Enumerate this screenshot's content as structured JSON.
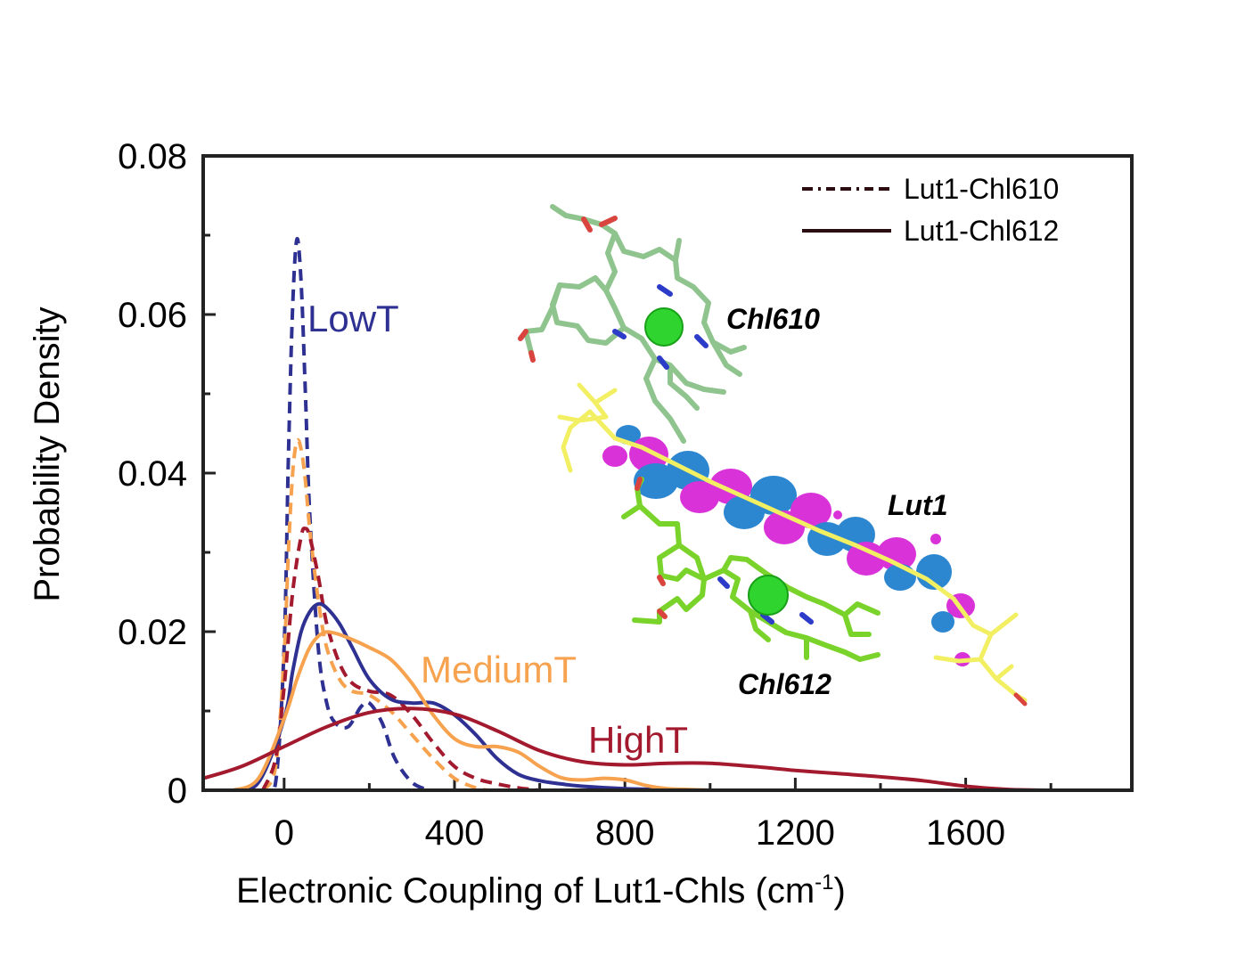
{
  "chart_data": {
    "type": "line",
    "xlabel_main": "Electronic Coupling of Lut1-Chls (cm",
    "xlabel_sup": "-1",
    "xlabel_close": ")",
    "ylabel": "Probability Density",
    "xlim": [
      -190,
      1990
    ],
    "ylim": [
      0,
      0.08
    ],
    "xticks": [
      0,
      400,
      800,
      1200,
      1600
    ],
    "xtick_labels": [
      "0",
      "400",
      "800",
      "1200",
      "1600"
    ],
    "yticks": [
      0,
      0.02,
      0.04,
      0.06,
      0.08
    ],
    "ytick_labels": [
      "0",
      "0.02",
      "0.04",
      "0.06",
      "0.08"
    ],
    "legend": {
      "position": "top-right",
      "entries": [
        {
          "label": "Lut1-Chl610",
          "style": "dashed"
        },
        {
          "label": "Lut1-Chl612",
          "style": "solid"
        }
      ]
    },
    "annotations": [
      {
        "text": "LowT",
        "color": "#2e3192"
      },
      {
        "text": "MediumT",
        "color": "#f7a24f"
      },
      {
        "text": "HighT",
        "color": "#a3192e"
      }
    ],
    "inset_labels": [
      "Chl610",
      "Lut1",
      "Chl612"
    ],
    "series": [
      {
        "pair": "Lut1-Chl610",
        "temperature": "LowT",
        "color": "#2e3192",
        "style": "dashed",
        "x": [
          -50,
          -20,
          0,
          10,
          20,
          30,
          40,
          50,
          60,
          80,
          100,
          120,
          150,
          180,
          200,
          230,
          260,
          300,
          340
        ],
        "y": [
          0,
          0.001,
          0.018,
          0.042,
          0.061,
          0.0695,
          0.064,
          0.05,
          0.035,
          0.018,
          0.011,
          0.0085,
          0.008,
          0.0105,
          0.011,
          0.0085,
          0.004,
          0.001,
          0
        ]
      },
      {
        "pair": "Lut1-Chl610",
        "temperature": "MediumT",
        "color": "#f7a24f",
        "style": "dashed",
        "x": [
          -50,
          -20,
          0,
          10,
          20,
          30,
          40,
          50,
          60,
          80,
          100,
          130,
          160,
          200,
          250,
          300,
          350,
          400,
          450,
          480
        ],
        "y": [
          0,
          0.003,
          0.017,
          0.03,
          0.04,
          0.044,
          0.043,
          0.039,
          0.033,
          0.024,
          0.018,
          0.014,
          0.0125,
          0.012,
          0.01,
          0.007,
          0.004,
          0.0015,
          0.0003,
          0
        ]
      },
      {
        "pair": "Lut1-Chl610",
        "temperature": "HighT",
        "color": "#a3192e",
        "style": "dashed",
        "x": [
          -50,
          -20,
          0,
          20,
          40,
          50,
          60,
          80,
          100,
          130,
          160,
          200,
          250,
          300,
          350,
          400,
          450,
          500,
          550,
          600
        ],
        "y": [
          0,
          0.004,
          0.013,
          0.025,
          0.032,
          0.033,
          0.032,
          0.027,
          0.021,
          0.016,
          0.0135,
          0.0125,
          0.012,
          0.0095,
          0.006,
          0.003,
          0.0015,
          0.0008,
          0.0003,
          0
        ]
      },
      {
        "pair": "Lut1-Chl612",
        "temperature": "LowT",
        "color": "#2e3192",
        "style": "solid",
        "x": [
          -120,
          -60,
          0,
          20,
          40,
          60,
          80,
          100,
          130,
          160,
          200,
          250,
          300,
          350,
          400,
          450,
          500,
          550,
          600,
          650,
          700,
          800,
          900,
          1000
        ],
        "y": [
          0,
          0.001,
          0.009,
          0.015,
          0.02,
          0.0225,
          0.0235,
          0.023,
          0.021,
          0.018,
          0.014,
          0.0115,
          0.011,
          0.011,
          0.0095,
          0.007,
          0.004,
          0.002,
          0.0012,
          0.0008,
          0.0005,
          0.0002,
          0.0001,
          0
        ]
      },
      {
        "pair": "Lut1-Chl612",
        "temperature": "MediumT",
        "color": "#f7a24f",
        "style": "solid",
        "x": [
          -120,
          -60,
          0,
          30,
          60,
          90,
          120,
          160,
          200,
          250,
          300,
          350,
          400,
          450,
          500,
          550,
          600,
          650,
          700,
          750,
          800,
          850,
          900,
          950,
          1000
        ],
        "y": [
          0,
          0.0015,
          0.009,
          0.014,
          0.018,
          0.0198,
          0.0198,
          0.019,
          0.018,
          0.0165,
          0.0135,
          0.0095,
          0.0065,
          0.0055,
          0.0055,
          0.0048,
          0.003,
          0.0016,
          0.0013,
          0.0015,
          0.0013,
          0.0006,
          0.0002,
          0.0001,
          0
        ]
      },
      {
        "pair": "Lut1-Chl612",
        "temperature": "HighT",
        "color": "#a3192e",
        "style": "solid",
        "x": [
          -190,
          -100,
          0,
          100,
          200,
          300,
          400,
          500,
          600,
          700,
          800,
          900,
          1000,
          1100,
          1200,
          1300,
          1400,
          1500,
          1600,
          1700,
          1800
        ],
        "y": [
          0.0015,
          0.003,
          0.0055,
          0.008,
          0.0098,
          0.0103,
          0.0096,
          0.0075,
          0.005,
          0.0036,
          0.0032,
          0.0034,
          0.0034,
          0.003,
          0.0025,
          0.0021,
          0.0017,
          0.0012,
          0.0005,
          0.0001,
          0
        ]
      }
    ]
  }
}
